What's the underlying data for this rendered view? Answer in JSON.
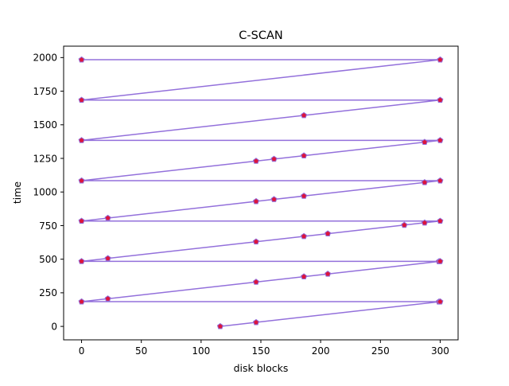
{
  "chart_data": {
    "type": "line",
    "title": "C-SCAN",
    "xlabel": "disk blocks",
    "ylabel": "time",
    "xlim": [
      -15,
      315
    ],
    "ylim": [
      -100,
      2085
    ],
    "xticks": [
      0,
      50,
      100,
      150,
      200,
      250,
      300
    ],
    "yticks": [
      0,
      250,
      500,
      750,
      1000,
      1250,
      1500,
      1750,
      2000
    ],
    "grid": false,
    "series": [
      {
        "line_color": "#9370DB",
        "marker": "pentagon",
        "marker_color": "#DC143C",
        "marker_edge_color": "#9370DB",
        "points": [
          {
            "x": 116,
            "y": 0
          },
          {
            "x": 146,
            "y": 30
          },
          {
            "x": 299,
            "y": 183
          },
          {
            "x": 300,
            "y": 184
          },
          {
            "x": 0,
            "y": 184
          },
          {
            "x": 22,
            "y": 206
          },
          {
            "x": 146,
            "y": 330
          },
          {
            "x": 186,
            "y": 370
          },
          {
            "x": 206,
            "y": 390
          },
          {
            "x": 299,
            "y": 483
          },
          {
            "x": 300,
            "y": 484
          },
          {
            "x": 0,
            "y": 484
          },
          {
            "x": 22,
            "y": 506
          },
          {
            "x": 146,
            "y": 630
          },
          {
            "x": 186,
            "y": 670
          },
          {
            "x": 206,
            "y": 690
          },
          {
            "x": 270,
            "y": 754
          },
          {
            "x": 287,
            "y": 771
          },
          {
            "x": 300,
            "y": 784
          },
          {
            "x": 0,
            "y": 784
          },
          {
            "x": 22,
            "y": 806
          },
          {
            "x": 146,
            "y": 930
          },
          {
            "x": 161,
            "y": 945
          },
          {
            "x": 186,
            "y": 970
          },
          {
            "x": 287,
            "y": 1071
          },
          {
            "x": 300,
            "y": 1084
          },
          {
            "x": 0,
            "y": 1084
          },
          {
            "x": 146,
            "y": 1230
          },
          {
            "x": 161,
            "y": 1245
          },
          {
            "x": 186,
            "y": 1270
          },
          {
            "x": 287,
            "y": 1371
          },
          {
            "x": 300,
            "y": 1384
          },
          {
            "x": 0,
            "y": 1384
          },
          {
            "x": 186,
            "y": 1570
          },
          {
            "x": 300,
            "y": 1684
          },
          {
            "x": 0,
            "y": 1684
          },
          {
            "x": 300,
            "y": 1984
          },
          {
            "x": 0,
            "y": 1984
          }
        ]
      }
    ]
  }
}
